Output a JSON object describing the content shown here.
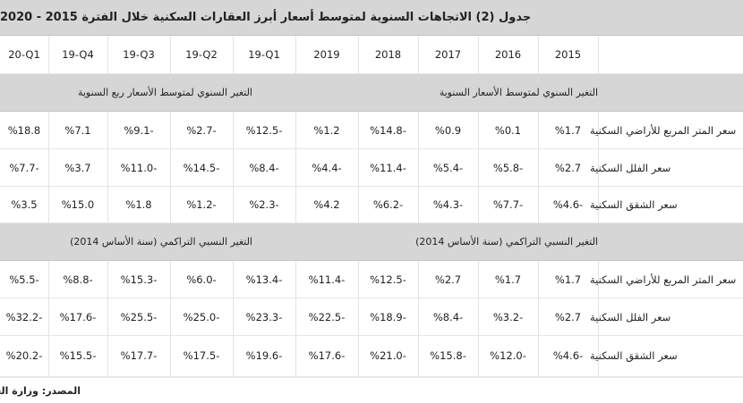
{
  "table": {
    "title": "جدول (2) الاتجاهات السنوية لمتوسط أسعار أبرز العقارات السكنية خلال الفترة 2015 - 2020",
    "columns": [
      "2015",
      "2016",
      "2017",
      "2018",
      "2019",
      "19-Q1",
      "19-Q2",
      "19-Q3",
      "19-Q4",
      "20-Q1"
    ],
    "sections": [
      {
        "left_heading": "التغير السنوي لمتوسط الأسعار ربع السنوية",
        "right_heading": "التغير السنوي لمتوسط الأسعار السنوية",
        "rows": [
          {
            "label": "سعر المتر المربع للأراضي السكنية",
            "values": [
              "%1.7",
              "%0.1",
              "%0.9",
              "%14.8-",
              "%1.2",
              "%12.5-",
              "%2.7-",
              "%9.1-",
              "%7.1",
              "%18.8"
            ]
          },
          {
            "label": "سعر الفلل السكنية",
            "values": [
              "%2.7",
              "%5.8-",
              "%5.4-",
              "%11.4-",
              "%4.4-",
              "%8.4-",
              "%14.5-",
              "%11.0-",
              "%3.7",
              "%7.7-"
            ]
          },
          {
            "label": "سعر الشقق السكنية",
            "values": [
              "%4.6-",
              "%7.7-",
              "%4.3-",
              "%6.2-",
              "%4.2",
              "%2.3-",
              "%1.2-",
              "%1.8",
              "%15.0",
              "%3.5"
            ]
          }
        ]
      },
      {
        "left_heading": "التغير النسبي التراكمي  (سنة الأساس 2014)",
        "right_heading": "التغير النسبي التراكمي (سنة الأساس 2014)",
        "rows": [
          {
            "label": "سعر المتر المربع للأراضي السكنية",
            "values": [
              "%1.7",
              "%1.7",
              "%2.7",
              "%12.5-",
              "%11.4-",
              "%13.4-",
              "%6.0-",
              "%15.3-",
              "%8.8-",
              "%5.5-"
            ]
          },
          {
            "label": "سعر الفلل السكنية",
            "values": [
              "%2.7",
              "%3.2-",
              "%8.4-",
              "%18.9-",
              "%22.5-",
              "%23.3-",
              "%25.0-",
              "%25.5-",
              "%17.6-",
              "%32.2-"
            ]
          },
          {
            "label": "سعر الشقق السكنية",
            "values": [
              "%4.6-",
              "%12.0-",
              "%15.8-",
              "%21.0-",
              "%17.6-",
              "%19.6-",
              "%17.5-",
              "%17.7-",
              "%15.5-",
              "%20.2-"
            ]
          }
        ]
      }
    ],
    "source": "المصدر: وزارة العدل"
  }
}
